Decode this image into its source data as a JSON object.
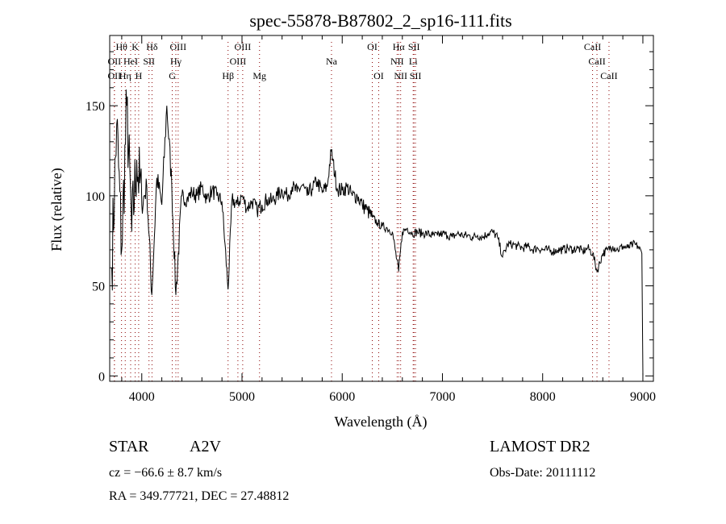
{
  "chart_data": {
    "type": "line",
    "title": "spec-55878-B87802_2_sp16-111.fits",
    "xlabel": "Wavelength (Å)",
    "ylabel": "Flux (relative)",
    "xlim": [
      3680,
      9105
    ],
    "ylim": [
      -3,
      189
    ],
    "xticks": [
      4000,
      5000,
      6000,
      7000,
      8000,
      9000
    ],
    "yticks": [
      0,
      50,
      100,
      150
    ],
    "grid": false,
    "series": [
      {
        "name": "spectrum",
        "x": [
          3700,
          3750,
          3800,
          3850,
          3900,
          3950,
          4000,
          4050,
          4100,
          4150,
          4200,
          4250,
          4300,
          4340,
          4400,
          4450,
          4500,
          4550,
          4600,
          4650,
          4700,
          4750,
          4800,
          4861,
          4900,
          4950,
          5000,
          5050,
          5100,
          5150,
          5200,
          5250,
          5300,
          5350,
          5400,
          5450,
          5500,
          5550,
          5600,
          5650,
          5700,
          5750,
          5800,
          5850,
          5890,
          5950,
          6000,
          6050,
          6100,
          6150,
          6200,
          6250,
          6300,
          6350,
          6400,
          6450,
          6500,
          6563,
          6600,
          6650,
          6700,
          6750,
          6800,
          6850,
          6900,
          6950,
          7000,
          7050,
          7100,
          7150,
          7200,
          7250,
          7300,
          7350,
          7400,
          7450,
          7500,
          7550,
          7600,
          7650,
          7700,
          7750,
          7800,
          7850,
          7900,
          7950,
          8000,
          8050,
          8100,
          8150,
          8200,
          8250,
          8300,
          8350,
          8400,
          8450,
          8500,
          8542,
          8600,
          8650,
          8700,
          8750,
          8800,
          8850,
          8900,
          8950,
          8990,
          9000
        ],
        "y": [
          60,
          140,
          70,
          150,
          80,
          120,
          95,
          105,
          45,
          110,
          95,
          150,
          105,
          45,
          100,
          98,
          102,
          100,
          105,
          98,
          103,
          100,
          97,
          48,
          98,
          95,
          100,
          93,
          97,
          92,
          95,
          98,
          97,
          100,
          103,
          100,
          105,
          102,
          106,
          100,
          104,
          108,
          102,
          105,
          125,
          104,
          103,
          105,
          100,
          100,
          95,
          92,
          88,
          85,
          83,
          82,
          80,
          58,
          80,
          82,
          79,
          80,
          79,
          79,
          78,
          78,
          79,
          78,
          77,
          79,
          78,
          78,
          77,
          78,
          77,
          79,
          80,
          77,
          66,
          73,
          73,
          72,
          71,
          72,
          70,
          71,
          70,
          70,
          69,
          70,
          70,
          71,
          70,
          71,
          69,
          71,
          68,
          58,
          68,
          70,
          72,
          70,
          72,
          71,
          73,
          72,
          68,
          0
        ]
      }
    ],
    "line_markers": [
      {
        "label": "Hθ",
        "wavelength": 3798,
        "row": 1
      },
      {
        "label": "K",
        "wavelength": 3934,
        "row": 1
      },
      {
        "label": "Hδ",
        "wavelength": 4102,
        "row": 1
      },
      {
        "label": "OIII",
        "wavelength": 4363,
        "row": 1
      },
      {
        "label": "OIII",
        "wavelength": 5007,
        "row": 1
      },
      {
        "label": "OI",
        "wavelength": 6300,
        "row": 1
      },
      {
        "label": "Hα",
        "wavelength": 6563,
        "row": 1
      },
      {
        "label": "SII",
        "wavelength": 6716,
        "row": 1
      },
      {
        "label": "CaII",
        "wavelength": 8498,
        "row": 1
      },
      {
        "label": "OII",
        "wavelength": 3727,
        "row": 2
      },
      {
        "label": "HeI",
        "wavelength": 3889,
        "row": 2
      },
      {
        "label": "SII",
        "wavelength": 4072,
        "row": 2
      },
      {
        "label": "Hγ",
        "wavelength": 4340,
        "row": 2
      },
      {
        "label": "OIII",
        "wavelength": 4959,
        "row": 2
      },
      {
        "label": "Na",
        "wavelength": 5893,
        "row": 2
      },
      {
        "label": "NII",
        "wavelength": 6548,
        "row": 2
      },
      {
        "label": "Li",
        "wavelength": 6708,
        "row": 2
      },
      {
        "label": "CaII",
        "wavelength": 8542,
        "row": 2
      },
      {
        "label": "OII",
        "wavelength": 3727,
        "row": 3
      },
      {
        "label": "Hη",
        "wavelength": 3835,
        "row": 3
      },
      {
        "label": "H",
        "wavelength": 3969,
        "row": 3
      },
      {
        "label": "G",
        "wavelength": 4304,
        "row": 3
      },
      {
        "label": "Hβ",
        "wavelength": 4861,
        "row": 3
      },
      {
        "label": "Mg",
        "wavelength": 5175,
        "row": 3
      },
      {
        "label": "OI",
        "wavelength": 6364,
        "row": 3
      },
      {
        "label": "NII",
        "wavelength": 6583,
        "row": 3
      },
      {
        "label": "SII",
        "wavelength": 6731,
        "row": 3
      },
      {
        "label": "CaII",
        "wavelength": 8662,
        "row": 3
      }
    ]
  },
  "info": {
    "class": "STAR",
    "subclass": "A2V",
    "survey": "LAMOST DR2",
    "cz": "cz = −66.6 ± 8.7 km/s",
    "obs_date": "Obs-Date: 20111112",
    "coords": "RA = 349.77721, DEC =  27.48812"
  },
  "colors": {
    "marker_line": "#8b0000",
    "spectrum": "#000000"
  }
}
